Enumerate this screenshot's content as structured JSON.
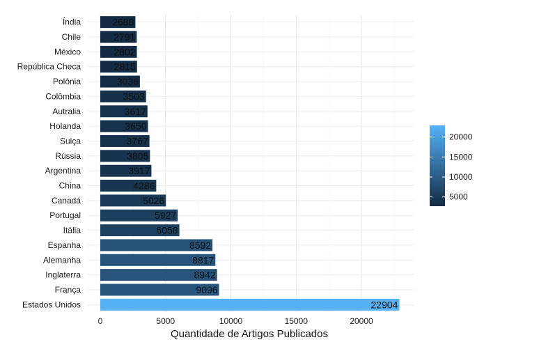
{
  "chart_data": {
    "type": "bar",
    "orientation": "horizontal",
    "xlabel": "Quantidade de Artigos Publicados",
    "ylabel": "",
    "xlim": [
      0,
      24000
    ],
    "x_ticks": [
      0,
      5000,
      10000,
      15000,
      20000
    ],
    "grid": true,
    "categories": [
      "Índia",
      "Chile",
      "México",
      "República Checa",
      "Polônia",
      "Colômbia",
      "Autralia",
      "Holanda",
      "Suiça",
      "Rússia",
      "Argentina",
      "China",
      "Canadá",
      "Portugal",
      "Itália",
      "Espanha",
      "Alemanha",
      "Inglaterra",
      "França",
      "Estados Unidos"
    ],
    "values": [
      2688,
      2791,
      2802,
      2815,
      3036,
      3503,
      3617,
      3650,
      3767,
      3805,
      3917,
      4286,
      5026,
      5927,
      6058,
      8592,
      8817,
      8942,
      9096,
      22904
    ],
    "legend": {
      "placement": "right",
      "ticks": [
        5000,
        10000,
        15000,
        20000
      ],
      "min": 2688,
      "max": 22904,
      "color_low": "#132b43",
      "color_high": "#56b1f7"
    }
  }
}
